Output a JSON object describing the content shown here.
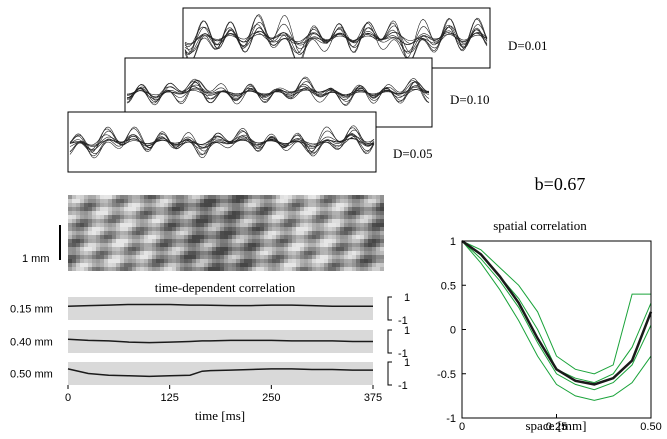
{
  "traces": {
    "labels": [
      "D=0.01",
      "D=0.10",
      "D=0.05"
    ]
  },
  "pattern": {
    "scale_label": "1 mm"
  },
  "annotation": "b=0.67",
  "chart_data": [
    {
      "type": "row-lines",
      "title": "time-dependent correlation",
      "xlabel": "time [ms]",
      "x": [
        0,
        25,
        50,
        75,
        100,
        125,
        150,
        165,
        175,
        200,
        225,
        250,
        275,
        300,
        325,
        350,
        375
      ],
      "xlim": [
        0,
        375
      ],
      "xticks": [
        0,
        125,
        250,
        375
      ],
      "ylim": [
        -1,
        1
      ],
      "yticks": [
        1,
        -1
      ],
      "color": "#1a1a1a",
      "band_color": "#d9d9d9",
      "rows": [
        {
          "label": "0.15 mm",
          "values": [
            0.2,
            0.25,
            0.3,
            0.35,
            0.35,
            0.35,
            0.3,
            0.3,
            0.28,
            0.25,
            0.25,
            0.3,
            0.3,
            0.25,
            0.2,
            0.2,
            0.2
          ]
        },
        {
          "label": "0.40 mm",
          "values": [
            0.2,
            0.1,
            0.05,
            -0.05,
            -0.1,
            -0.05,
            0,
            0.05,
            0.05,
            0.1,
            0.1,
            0.1,
            0.05,
            0.05,
            0.05,
            0,
            0
          ]
        },
        {
          "label": "0.50 mm",
          "values": [
            0.4,
            0,
            -0.15,
            -0.2,
            -0.25,
            -0.2,
            -0.15,
            0.2,
            0.25,
            0.3,
            0.35,
            0.4,
            0.4,
            0.35,
            0.35,
            0.3,
            0.3
          ]
        }
      ]
    },
    {
      "type": "line",
      "title": "spatial correlation",
      "xlabel": "space [mm]",
      "x": [
        0,
        0.05,
        0.1,
        0.15,
        0.2,
        0.25,
        0.3,
        0.35,
        0.4,
        0.45,
        0.5
      ],
      "xlim": [
        0,
        0.5
      ],
      "xticks": [
        0,
        0.25,
        {
          "value": 0.5,
          "label": "0.50"
        }
      ],
      "ylim": [
        -1,
        1
      ],
      "yticks": [
        1,
        0.5,
        0,
        -0.5,
        -1
      ],
      "series": [
        {
          "color": "#1aa33a",
          "values": [
            1,
            0.9,
            0.7,
            0.5,
            0.2,
            -0.3,
            -0.45,
            -0.5,
            -0.4,
            0.4,
            0.4
          ]
        },
        {
          "color": "#1aa33a",
          "values": [
            1,
            0.85,
            0.6,
            0.35,
            0,
            -0.45,
            -0.55,
            -0.6,
            -0.5,
            -0.2,
            0.3
          ]
        },
        {
          "color": "#1aa33a",
          "values": [
            1,
            0.8,
            0.55,
            0.25,
            -0.15,
            -0.5,
            -0.62,
            -0.68,
            -0.6,
            -0.4,
            0.05
          ]
        },
        {
          "color": "#1aa33a",
          "values": [
            1,
            0.75,
            0.45,
            0.1,
            -0.3,
            -0.62,
            -0.75,
            -0.8,
            -0.75,
            -0.6,
            -0.3
          ]
        },
        {
          "color": "#1a1a1a",
          "values": [
            1,
            0.85,
            0.6,
            0.3,
            -0.1,
            -0.45,
            -0.58,
            -0.62,
            -0.55,
            -0.35,
            0.2
          ]
        }
      ]
    }
  ]
}
